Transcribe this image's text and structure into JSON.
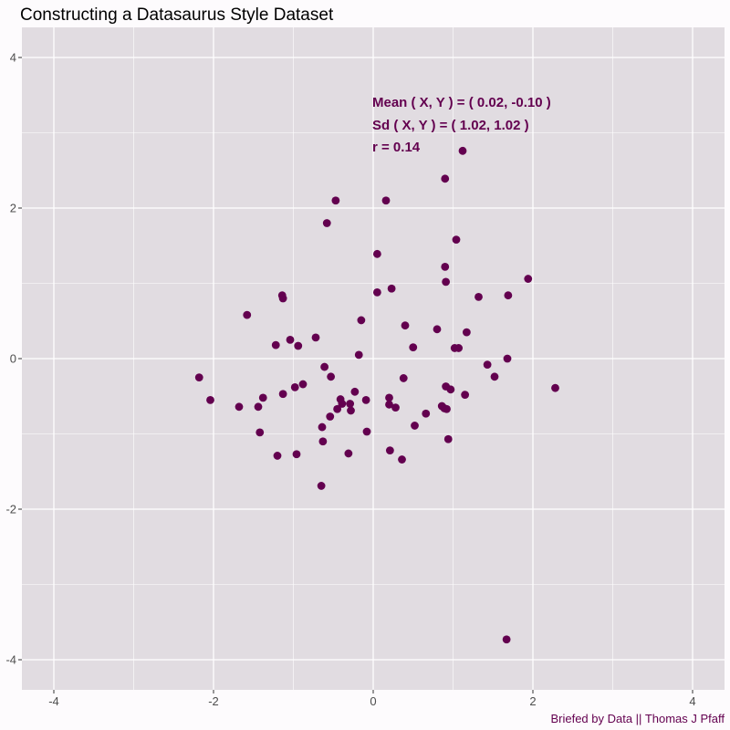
{
  "chart_data": {
    "type": "scatter",
    "title": "Constructing a Datasaurus Style Dataset",
    "xlabel": "",
    "ylabel": "",
    "xlim": [
      -4.4,
      4.4
    ],
    "ylim": [
      -4.4,
      4.4
    ],
    "x_ticks": [
      -4,
      -2,
      0,
      2,
      4
    ],
    "y_ticks": [
      -4,
      -2,
      0,
      2,
      4
    ],
    "x_tick_labels": [
      "-4",
      "-2",
      "0",
      "2",
      "4"
    ],
    "y_tick_labels": [
      "-4",
      "-2",
      "0",
      "2",
      "4"
    ],
    "grid": true,
    "colors": {
      "point": "#63004f",
      "panel": "#e1dce1",
      "grid": "#ffffff",
      "annotation": "#63004f"
    },
    "annotations": [
      "Mean ( X, Y ) = ( 0.02, -0.10 )",
      "Sd ( X, Y ) = ( 1.02, 1.02 )",
      "r = 0.14"
    ],
    "caption": "Briefed by Data || Thomas J Pfaff",
    "points": [
      {
        "x": -2.18,
        "y": -0.25
      },
      {
        "x": -2.04,
        "y": -0.55
      },
      {
        "x": -1.68,
        "y": -0.64
      },
      {
        "x": -1.58,
        "y": 0.58
      },
      {
        "x": -1.44,
        "y": -0.64
      },
      {
        "x": -1.42,
        "y": -0.98
      },
      {
        "x": -1.38,
        "y": -0.52
      },
      {
        "x": -1.22,
        "y": 0.18
      },
      {
        "x": -1.2,
        "y": -1.29
      },
      {
        "x": -1.14,
        "y": 0.84
      },
      {
        "x": -1.13,
        "y": 0.8
      },
      {
        "x": -1.13,
        "y": -0.47
      },
      {
        "x": -1.04,
        "y": 0.25
      },
      {
        "x": -0.98,
        "y": -0.38
      },
      {
        "x": -0.96,
        "y": -1.27
      },
      {
        "x": -0.94,
        "y": 0.17
      },
      {
        "x": -0.88,
        "y": -0.34
      },
      {
        "x": -0.72,
        "y": 0.28
      },
      {
        "x": -0.65,
        "y": -1.69
      },
      {
        "x": -0.64,
        "y": -0.91
      },
      {
        "x": -0.63,
        "y": -1.1
      },
      {
        "x": -0.61,
        "y": -0.11
      },
      {
        "x": -0.58,
        "y": 1.8
      },
      {
        "x": -0.54,
        "y": -0.77
      },
      {
        "x": -0.53,
        "y": -0.24
      },
      {
        "x": -0.47,
        "y": 2.1
      },
      {
        "x": -0.45,
        "y": -0.67
      },
      {
        "x": -0.41,
        "y": -0.54
      },
      {
        "x": -0.39,
        "y": -0.6
      },
      {
        "x": -0.31,
        "y": -1.26
      },
      {
        "x": -0.29,
        "y": -0.6
      },
      {
        "x": -0.28,
        "y": -0.69
      },
      {
        "x": -0.23,
        "y": -0.44
      },
      {
        "x": -0.18,
        "y": 0.05
      },
      {
        "x": -0.15,
        "y": 0.51
      },
      {
        "x": -0.09,
        "y": -0.55
      },
      {
        "x": -0.08,
        "y": -0.97
      },
      {
        "x": 0.05,
        "y": 1.39
      },
      {
        "x": 0.05,
        "y": 0.88
      },
      {
        "x": 0.16,
        "y": 2.1
      },
      {
        "x": 0.2,
        "y": -0.52
      },
      {
        "x": 0.2,
        "y": -0.61
      },
      {
        "x": 0.21,
        "y": -1.22
      },
      {
        "x": 0.23,
        "y": 0.93
      },
      {
        "x": 0.28,
        "y": -0.65
      },
      {
        "x": 0.36,
        "y": -1.34
      },
      {
        "x": 0.38,
        "y": -0.26
      },
      {
        "x": 0.4,
        "y": 0.44
      },
      {
        "x": 0.5,
        "y": 0.15
      },
      {
        "x": 0.52,
        "y": -0.89
      },
      {
        "x": 0.66,
        "y": -0.73
      },
      {
        "x": 0.8,
        "y": 0.39
      },
      {
        "x": 0.86,
        "y": -0.63
      },
      {
        "x": 0.89,
        "y": -0.66
      },
      {
        "x": 0.9,
        "y": 2.39
      },
      {
        "x": 0.9,
        "y": 1.22
      },
      {
        "x": 0.91,
        "y": 1.02
      },
      {
        "x": 0.91,
        "y": -0.37
      },
      {
        "x": 0.92,
        "y": -0.67
      },
      {
        "x": 0.94,
        "y": -1.07
      },
      {
        "x": 0.97,
        "y": -0.41
      },
      {
        "x": 1.02,
        "y": 0.14
      },
      {
        "x": 1.04,
        "y": 1.58
      },
      {
        "x": 1.07,
        "y": 0.14
      },
      {
        "x": 1.12,
        "y": 2.76
      },
      {
        "x": 1.15,
        "y": -0.48
      },
      {
        "x": 1.17,
        "y": 0.35
      },
      {
        "x": 1.32,
        "y": 0.82
      },
      {
        "x": 1.43,
        "y": -0.08
      },
      {
        "x": 1.52,
        "y": -0.24
      },
      {
        "x": 1.67,
        "y": -3.73
      },
      {
        "x": 1.68,
        "y": 0.0
      },
      {
        "x": 1.69,
        "y": 0.84
      },
      {
        "x": 1.94,
        "y": 1.06
      },
      {
        "x": 2.28,
        "y": -0.39
      }
    ]
  }
}
